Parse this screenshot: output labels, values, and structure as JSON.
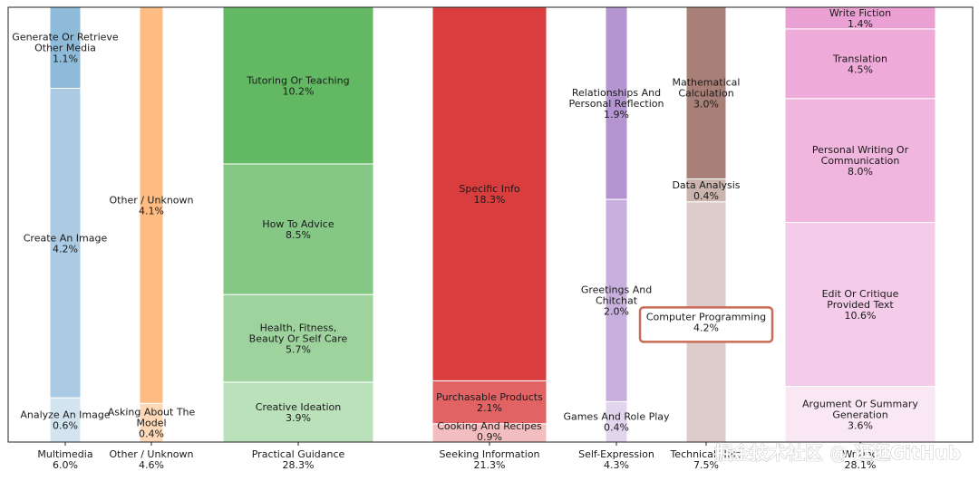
{
  "chart_data": {
    "type": "bar",
    "stacked": true,
    "title": "",
    "xlabel": "",
    "ylabel": "",
    "grid": false,
    "legend": "none",
    "ylim": [
      0,
      1
    ],
    "categories": [
      {
        "name": "Multimedia",
        "total": "6.0%",
        "color": "#1f77b4",
        "segments": [
          {
            "label": "Analyze An Image",
            "pct": "0.6%",
            "value": 0.6
          },
          {
            "label": "Create An Image",
            "pct": "4.2%",
            "value": 4.2
          },
          {
            "label": "Generate Or Retrieve Other Media",
            "pct": "1.1%",
            "value": 1.1
          }
        ]
      },
      {
        "name": "Other / Unknown",
        "total": "4.6%",
        "color": "#ff7f0e",
        "segments": [
          {
            "label": "Asking About The Model",
            "pct": "0.4%",
            "value": 0.4
          },
          {
            "label": "Other / Unknown",
            "pct": "4.1%",
            "value": 4.1
          }
        ]
      },
      {
        "name": "Practical Guidance",
        "total": "28.3%",
        "color": "#2ca02c",
        "segments": [
          {
            "label": "Creative Ideation",
            "pct": "3.9%",
            "value": 3.9
          },
          {
            "label": "Health, Fitness, Beauty Or Self Care",
            "pct": "5.7%",
            "value": 5.7
          },
          {
            "label": "How To Advice",
            "pct": "8.5%",
            "value": 8.5
          },
          {
            "label": "Tutoring Or Teaching",
            "pct": "10.2%",
            "value": 10.2
          }
        ]
      },
      {
        "name": "Seeking Information",
        "total": "21.3%",
        "color": "#d62728",
        "segments": [
          {
            "label": "Cooking And Recipes",
            "pct": "0.9%",
            "value": 0.9
          },
          {
            "label": "Purchasable Products",
            "pct": "2.1%",
            "value": 2.1
          },
          {
            "label": "Specific Info",
            "pct": "18.3%",
            "value": 18.3
          }
        ]
      },
      {
        "name": "Self-Expression",
        "total": "4.3%",
        "color": "#9467bd",
        "segments": [
          {
            "label": "Games And Role Play",
            "pct": "0.4%",
            "value": 0.4
          },
          {
            "label": "Greetings And Chitchat",
            "pct": "2.0%",
            "value": 2.0
          },
          {
            "label": "Relationships And Personal Reflection",
            "pct": "1.9%",
            "value": 1.9
          }
        ]
      },
      {
        "name": "Technical Help",
        "total": "7.5%",
        "color": "#8c564b",
        "segments": [
          {
            "label": "Computer Programming",
            "pct": "4.2%",
            "value": 4.2,
            "highlighted": true
          },
          {
            "label": "Data Analysis",
            "pct": "0.4%",
            "value": 0.4
          },
          {
            "label": "Mathematical Calculation",
            "pct": "3.0%",
            "value": 3.0
          }
        ]
      },
      {
        "name": "Writing",
        "total": "28.1%",
        "color": "#e377c2",
        "segments": [
          {
            "label": "Argument Or Summary Generation",
            "pct": "3.6%",
            "value": 3.6
          },
          {
            "label": "Edit Or Critique Provided Text",
            "pct": "10.6%",
            "value": 10.6
          },
          {
            "label": "Personal Writing Or Communication",
            "pct": "8.0%",
            "value": 8.0
          },
          {
            "label": "Translation",
            "pct": "4.5%",
            "value": 4.5
          },
          {
            "label": "Write Fiction",
            "pct": "1.4%",
            "value": 1.4
          }
        ]
      }
    ],
    "highlight_color": "#c96b55"
  },
  "watermark": {
    "text": "掘金技术社区 @ 逛逛GitHub"
  }
}
